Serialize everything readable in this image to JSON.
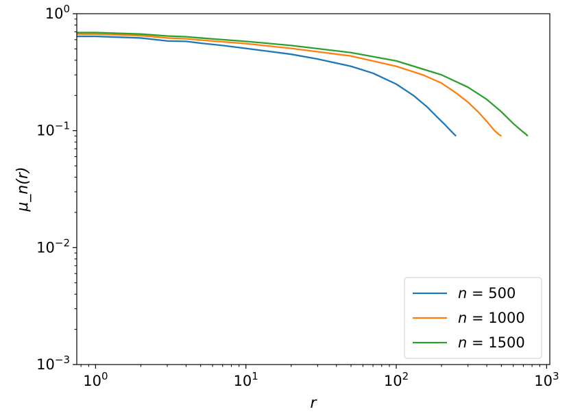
{
  "chart_data": {
    "type": "line",
    "title": "",
    "xlabel": "r",
    "ylabel": "μ_n(r)",
    "xscale": "log",
    "yscale": "log",
    "xlim": [
      0.75,
      1050
    ],
    "ylim": [
      0.001,
      1
    ],
    "grid": false,
    "legend_position": "lower-right",
    "x_ticks": [
      {
        "base": "10",
        "exp": "0",
        "value": 1
      },
      {
        "base": "10",
        "exp": "1",
        "value": 10
      },
      {
        "base": "10",
        "exp": "2",
        "value": 100
      },
      {
        "base": "10",
        "exp": "3",
        "value": 1000
      }
    ],
    "y_ticks": [
      {
        "base": "10",
        "exp": "0",
        "value": 1
      },
      {
        "base": "10",
        "exp": "−1",
        "value": 0.1
      },
      {
        "base": "10",
        "exp": "−2",
        "value": 0.01
      },
      {
        "base": "10",
        "exp": "−3",
        "value": 0.001
      }
    ],
    "series": [
      {
        "name": "n = 500",
        "legend_var": "n",
        "legend_eq": " = 500",
        "color": "#1f77b4",
        "x": [
          0.75,
          1,
          2,
          3,
          4,
          5,
          7,
          10,
          20,
          30,
          50,
          70,
          100,
          130,
          160,
          190,
          210,
          230,
          245,
          250
        ],
        "y": [
          0.64,
          0.64,
          0.62,
          0.585,
          0.58,
          0.56,
          0.535,
          0.505,
          0.45,
          0.41,
          0.355,
          0.31,
          0.25,
          0.2,
          0.16,
          0.128,
          0.113,
          0.1,
          0.092,
          0.09
        ]
      },
      {
        "name": "n = 1000",
        "legend_var": "n",
        "legend_eq": " = 1000",
        "color": "#ff7f0e",
        "x": [
          0.75,
          1,
          2,
          3,
          4,
          5,
          7,
          10,
          20,
          50,
          100,
          150,
          200,
          250,
          300,
          350,
          400,
          450,
          480,
          500
        ],
        "y": [
          0.67,
          0.67,
          0.65,
          0.62,
          0.61,
          0.595,
          0.575,
          0.555,
          0.505,
          0.435,
          0.355,
          0.3,
          0.255,
          0.21,
          0.175,
          0.145,
          0.12,
          0.1,
          0.093,
          0.09
        ]
      },
      {
        "name": "n = 1500",
        "legend_var": "n",
        "legend_eq": " = 1500",
        "color": "#2ca02c",
        "x": [
          0.75,
          1,
          2,
          3,
          4,
          5,
          7,
          10,
          20,
          50,
          100,
          200,
          300,
          400,
          500,
          600,
          680,
          730,
          750
        ],
        "y": [
          0.69,
          0.69,
          0.67,
          0.645,
          0.635,
          0.62,
          0.6,
          0.58,
          0.535,
          0.465,
          0.395,
          0.3,
          0.235,
          0.185,
          0.145,
          0.115,
          0.1,
          0.093,
          0.09
        ]
      }
    ]
  }
}
